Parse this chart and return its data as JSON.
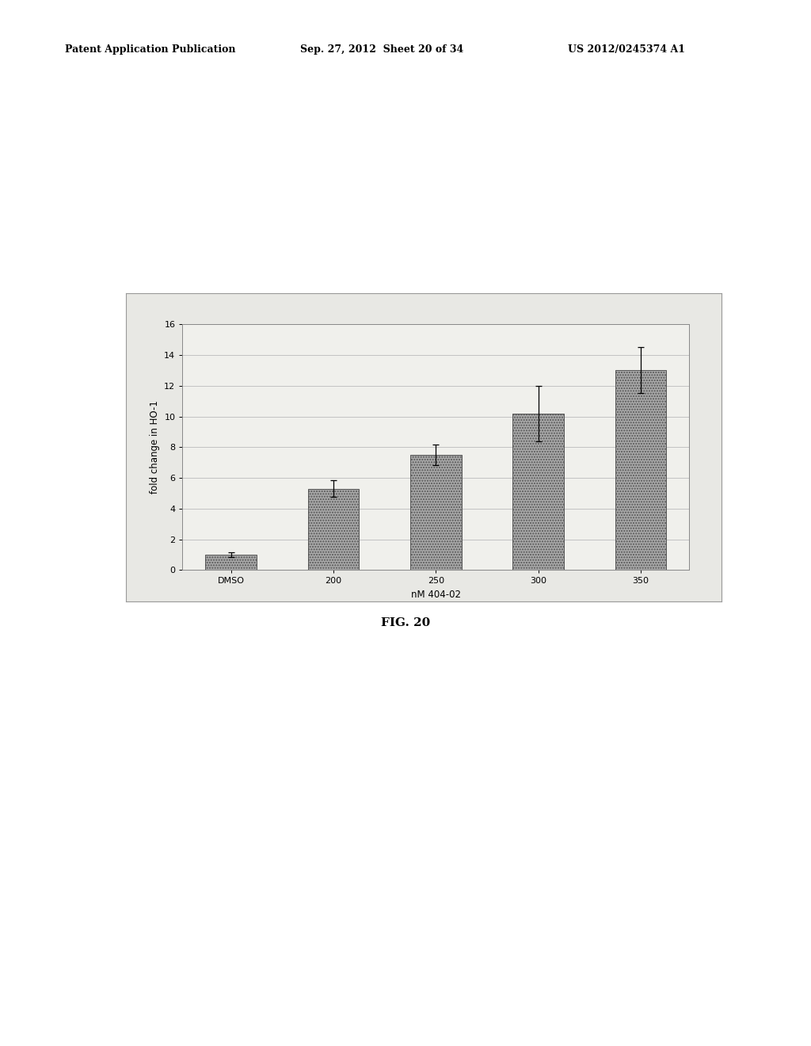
{
  "categories": [
    "DMSO",
    "200",
    "250",
    "300",
    "350"
  ],
  "values": [
    1.0,
    5.3,
    7.5,
    10.2,
    13.0
  ],
  "errors": [
    0.15,
    0.55,
    0.65,
    1.8,
    1.5
  ],
  "bar_color": "#a8a8a8",
  "bar_hatch": ".....",
  "ylabel": "fold change in HO-1",
  "xlabel": "nM 404-02",
  "ylim": [
    0,
    16
  ],
  "yticks": [
    0,
    2,
    4,
    6,
    8,
    10,
    12,
    14,
    16
  ],
  "figure_caption": "FIG. 20",
  "header_left": "Patent Application Publication",
  "header_center": "Sep. 27, 2012  Sheet 20 of 34",
  "header_right": "US 2012/0245374 A1",
  "chart_bg": "#f0f0ec",
  "outer_bg": "#ffffff",
  "outer_box_bg": "#e8e8e4",
  "grid_color": "#bbbbbb",
  "bar_width": 0.5
}
